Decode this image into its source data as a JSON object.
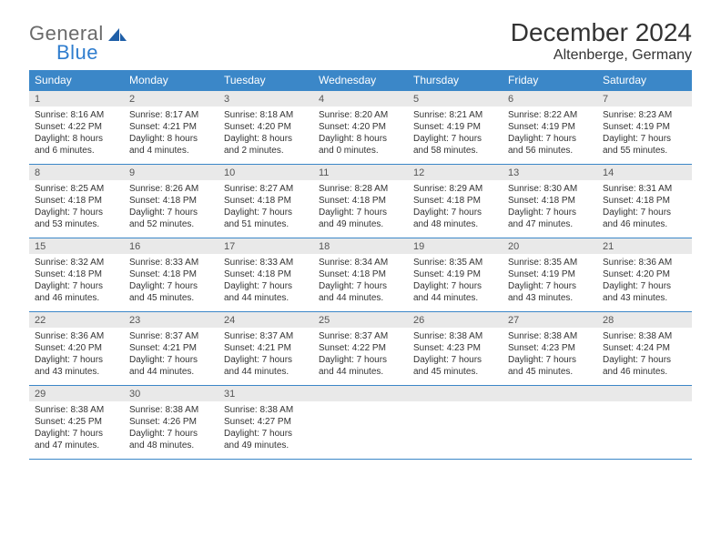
{
  "brand": {
    "part1": "General",
    "part2": "Blue"
  },
  "title": "December 2024",
  "location": "Altenberge, Germany",
  "colors": {
    "header_bg": "#3b87c8",
    "header_text": "#ffffff",
    "daynum_bg": "#e9e9e9",
    "rule": "#3b87c8",
    "brand_gray": "#6a6a6a",
    "brand_blue": "#2f7dce",
    "text": "#333333",
    "page_bg": "#ffffff"
  },
  "typography": {
    "title_fontsize": 28,
    "location_fontsize": 16,
    "dow_fontsize": 12,
    "daynum_fontsize": 11,
    "body_fontsize": 10,
    "logo_fontsize": 22
  },
  "dow": [
    "Sunday",
    "Monday",
    "Tuesday",
    "Wednesday",
    "Thursday",
    "Friday",
    "Saturday"
  ],
  "weeks": [
    [
      {
        "n": "1",
        "sr": "Sunrise: 8:16 AM",
        "ss": "Sunset: 4:22 PM",
        "dl": "Daylight: 8 hours and 6 minutes."
      },
      {
        "n": "2",
        "sr": "Sunrise: 8:17 AM",
        "ss": "Sunset: 4:21 PM",
        "dl": "Daylight: 8 hours and 4 minutes."
      },
      {
        "n": "3",
        "sr": "Sunrise: 8:18 AM",
        "ss": "Sunset: 4:20 PM",
        "dl": "Daylight: 8 hours and 2 minutes."
      },
      {
        "n": "4",
        "sr": "Sunrise: 8:20 AM",
        "ss": "Sunset: 4:20 PM",
        "dl": "Daylight: 8 hours and 0 minutes."
      },
      {
        "n": "5",
        "sr": "Sunrise: 8:21 AM",
        "ss": "Sunset: 4:19 PM",
        "dl": "Daylight: 7 hours and 58 minutes."
      },
      {
        "n": "6",
        "sr": "Sunrise: 8:22 AM",
        "ss": "Sunset: 4:19 PM",
        "dl": "Daylight: 7 hours and 56 minutes."
      },
      {
        "n": "7",
        "sr": "Sunrise: 8:23 AM",
        "ss": "Sunset: 4:19 PM",
        "dl": "Daylight: 7 hours and 55 minutes."
      }
    ],
    [
      {
        "n": "8",
        "sr": "Sunrise: 8:25 AM",
        "ss": "Sunset: 4:18 PM",
        "dl": "Daylight: 7 hours and 53 minutes."
      },
      {
        "n": "9",
        "sr": "Sunrise: 8:26 AM",
        "ss": "Sunset: 4:18 PM",
        "dl": "Daylight: 7 hours and 52 minutes."
      },
      {
        "n": "10",
        "sr": "Sunrise: 8:27 AM",
        "ss": "Sunset: 4:18 PM",
        "dl": "Daylight: 7 hours and 51 minutes."
      },
      {
        "n": "11",
        "sr": "Sunrise: 8:28 AM",
        "ss": "Sunset: 4:18 PM",
        "dl": "Daylight: 7 hours and 49 minutes."
      },
      {
        "n": "12",
        "sr": "Sunrise: 8:29 AM",
        "ss": "Sunset: 4:18 PM",
        "dl": "Daylight: 7 hours and 48 minutes."
      },
      {
        "n": "13",
        "sr": "Sunrise: 8:30 AM",
        "ss": "Sunset: 4:18 PM",
        "dl": "Daylight: 7 hours and 47 minutes."
      },
      {
        "n": "14",
        "sr": "Sunrise: 8:31 AM",
        "ss": "Sunset: 4:18 PM",
        "dl": "Daylight: 7 hours and 46 minutes."
      }
    ],
    [
      {
        "n": "15",
        "sr": "Sunrise: 8:32 AM",
        "ss": "Sunset: 4:18 PM",
        "dl": "Daylight: 7 hours and 46 minutes."
      },
      {
        "n": "16",
        "sr": "Sunrise: 8:33 AM",
        "ss": "Sunset: 4:18 PM",
        "dl": "Daylight: 7 hours and 45 minutes."
      },
      {
        "n": "17",
        "sr": "Sunrise: 8:33 AM",
        "ss": "Sunset: 4:18 PM",
        "dl": "Daylight: 7 hours and 44 minutes."
      },
      {
        "n": "18",
        "sr": "Sunrise: 8:34 AM",
        "ss": "Sunset: 4:18 PM",
        "dl": "Daylight: 7 hours and 44 minutes."
      },
      {
        "n": "19",
        "sr": "Sunrise: 8:35 AM",
        "ss": "Sunset: 4:19 PM",
        "dl": "Daylight: 7 hours and 44 minutes."
      },
      {
        "n": "20",
        "sr": "Sunrise: 8:35 AM",
        "ss": "Sunset: 4:19 PM",
        "dl": "Daylight: 7 hours and 43 minutes."
      },
      {
        "n": "21",
        "sr": "Sunrise: 8:36 AM",
        "ss": "Sunset: 4:20 PM",
        "dl": "Daylight: 7 hours and 43 minutes."
      }
    ],
    [
      {
        "n": "22",
        "sr": "Sunrise: 8:36 AM",
        "ss": "Sunset: 4:20 PM",
        "dl": "Daylight: 7 hours and 43 minutes."
      },
      {
        "n": "23",
        "sr": "Sunrise: 8:37 AM",
        "ss": "Sunset: 4:21 PM",
        "dl": "Daylight: 7 hours and 44 minutes."
      },
      {
        "n": "24",
        "sr": "Sunrise: 8:37 AM",
        "ss": "Sunset: 4:21 PM",
        "dl": "Daylight: 7 hours and 44 minutes."
      },
      {
        "n": "25",
        "sr": "Sunrise: 8:37 AM",
        "ss": "Sunset: 4:22 PM",
        "dl": "Daylight: 7 hours and 44 minutes."
      },
      {
        "n": "26",
        "sr": "Sunrise: 8:38 AM",
        "ss": "Sunset: 4:23 PM",
        "dl": "Daylight: 7 hours and 45 minutes."
      },
      {
        "n": "27",
        "sr": "Sunrise: 8:38 AM",
        "ss": "Sunset: 4:23 PM",
        "dl": "Daylight: 7 hours and 45 minutes."
      },
      {
        "n": "28",
        "sr": "Sunrise: 8:38 AM",
        "ss": "Sunset: 4:24 PM",
        "dl": "Daylight: 7 hours and 46 minutes."
      }
    ],
    [
      {
        "n": "29",
        "sr": "Sunrise: 8:38 AM",
        "ss": "Sunset: 4:25 PM",
        "dl": "Daylight: 7 hours and 47 minutes."
      },
      {
        "n": "30",
        "sr": "Sunrise: 8:38 AM",
        "ss": "Sunset: 4:26 PM",
        "dl": "Daylight: 7 hours and 48 minutes."
      },
      {
        "n": "31",
        "sr": "Sunrise: 8:38 AM",
        "ss": "Sunset: 4:27 PM",
        "dl": "Daylight: 7 hours and 49 minutes."
      },
      {
        "n": "",
        "sr": "",
        "ss": "",
        "dl": ""
      },
      {
        "n": "",
        "sr": "",
        "ss": "",
        "dl": ""
      },
      {
        "n": "",
        "sr": "",
        "ss": "",
        "dl": ""
      },
      {
        "n": "",
        "sr": "",
        "ss": "",
        "dl": ""
      }
    ]
  ]
}
